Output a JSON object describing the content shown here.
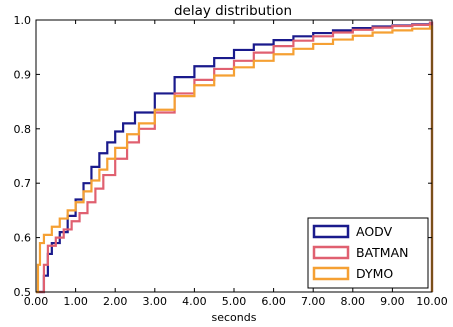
{
  "chart_data": {
    "type": "line",
    "title": "delay distribution",
    "xlabel": "seconds",
    "ylabel": "",
    "xlim": [
      0,
      10
    ],
    "ylim": [
      0.5,
      1.0
    ],
    "x_ticks": [
      "0.00",
      "1.00",
      "2.00",
      "3.00",
      "4.00",
      "5.00",
      "6.00",
      "7.00",
      "8.00",
      "9.00",
      "10.00"
    ],
    "y_ticks": [
      "0.5",
      "0.6",
      "0.7",
      "0.8",
      "0.9",
      "1.0"
    ],
    "grid": false,
    "legend_position": "bottom-right",
    "series": [
      {
        "name": "AODV",
        "color": "#1a1a8c",
        "style": "step",
        "x": [
          0,
          0.1,
          0.2,
          0.3,
          0.4,
          0.6,
          0.8,
          1.0,
          1.2,
          1.4,
          1.6,
          1.8,
          2.0,
          2.2,
          2.5,
          3.0,
          3.5,
          4.0,
          4.5,
          5.0,
          5.5,
          6.0,
          6.5,
          7.0,
          7.5,
          8.0,
          8.5,
          9.0,
          9.5,
          9.95,
          10.0
        ],
        "y": [
          0.5,
          0.5,
          0.53,
          0.57,
          0.59,
          0.61,
          0.64,
          0.67,
          0.7,
          0.73,
          0.755,
          0.775,
          0.795,
          0.81,
          0.83,
          0.865,
          0.895,
          0.915,
          0.93,
          0.945,
          0.955,
          0.963,
          0.97,
          0.976,
          0.981,
          0.985,
          0.988,
          0.99,
          0.992,
          0.995,
          0.995
        ]
      },
      {
        "name": "BATMAN",
        "color": "#e06070",
        "style": "step",
        "x": [
          0,
          0.1,
          0.2,
          0.3,
          0.5,
          0.7,
          0.9,
          1.1,
          1.3,
          1.5,
          1.7,
          2.0,
          2.3,
          2.6,
          3.0,
          3.5,
          4.0,
          4.5,
          5.0,
          5.5,
          6.0,
          6.5,
          7.0,
          7.5,
          8.0,
          8.5,
          9.0,
          9.5,
          9.95,
          10.0
        ],
        "y": [
          0.5,
          0.5,
          0.55,
          0.585,
          0.6,
          0.615,
          0.63,
          0.645,
          0.665,
          0.69,
          0.715,
          0.745,
          0.775,
          0.8,
          0.83,
          0.865,
          0.89,
          0.91,
          0.925,
          0.94,
          0.952,
          0.962,
          0.97,
          0.977,
          0.982,
          0.986,
          0.989,
          0.991,
          0.995,
          0.995
        ]
      },
      {
        "name": "DYMO",
        "color": "#f5a033",
        "style": "step",
        "x": [
          0,
          0.05,
          0.1,
          0.2,
          0.4,
          0.6,
          0.8,
          1.0,
          1.2,
          1.4,
          1.6,
          1.8,
          2.0,
          2.3,
          2.6,
          3.0,
          3.5,
          4.0,
          4.5,
          5.0,
          5.5,
          6.0,
          6.5,
          7.0,
          7.5,
          8.0,
          8.5,
          9.0,
          9.5,
          9.95,
          10.0
        ],
        "y": [
          0.5,
          0.55,
          0.59,
          0.605,
          0.62,
          0.635,
          0.65,
          0.665,
          0.685,
          0.705,
          0.725,
          0.745,
          0.765,
          0.79,
          0.81,
          0.835,
          0.86,
          0.88,
          0.898,
          0.913,
          0.925,
          0.937,
          0.947,
          0.956,
          0.964,
          0.971,
          0.977,
          0.981,
          0.984,
          0.988,
          0.988
        ]
      }
    ]
  }
}
